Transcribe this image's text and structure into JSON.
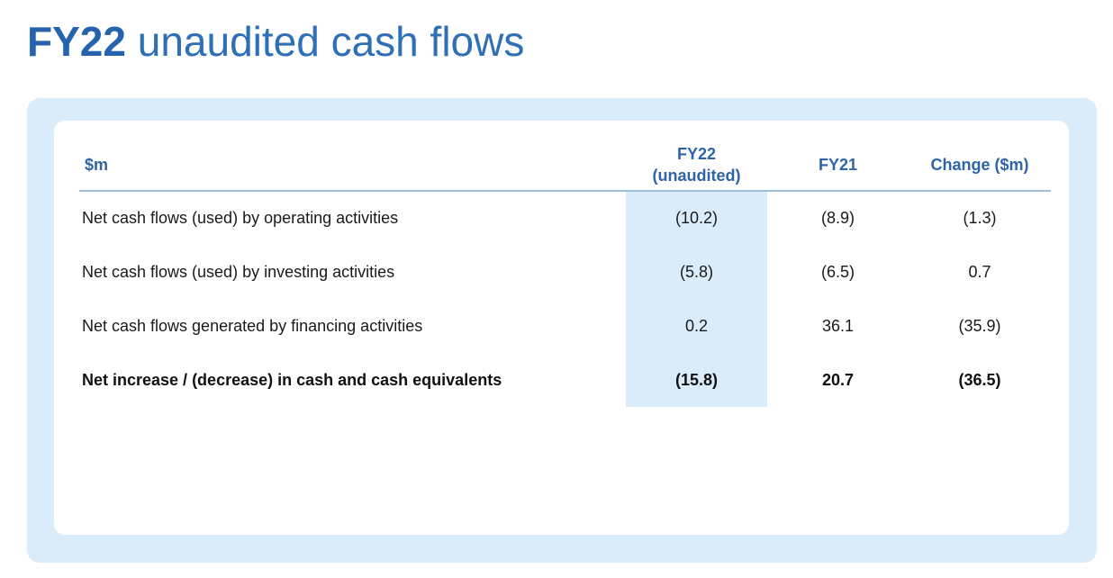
{
  "title": {
    "bold": "FY22",
    "rest": "unaudited cash flows"
  },
  "table": {
    "headers": {
      "label": "$m",
      "fy22_line1": "FY22",
      "fy22_line2": "(unaudited)",
      "fy21": "FY21",
      "change": "Change ($m)"
    },
    "rows": [
      {
        "label": "Net cash flows (used) by operating activities",
        "fy22": "(10.2)",
        "fy21": "(8.9)",
        "change": "(1.3)"
      },
      {
        "label": "Net cash flows (used) by investing activities",
        "fy22": "(5.8)",
        "fy21": "(6.5)",
        "change": "0.7"
      },
      {
        "label": "Net cash flows generated by financing activities",
        "fy22": "0.2",
        "fy21": "36.1",
        "change": "(35.9)"
      },
      {
        "label": "Net increase / (decrease) in cash and cash equivalents",
        "fy22": "(15.8)",
        "fy21": "20.7",
        "change": "(36.5)"
      }
    ]
  },
  "colors": {
    "title_blue": "#2f6fb5",
    "header_blue": "#2f64a8",
    "panel_light_blue": "#daecfa"
  }
}
